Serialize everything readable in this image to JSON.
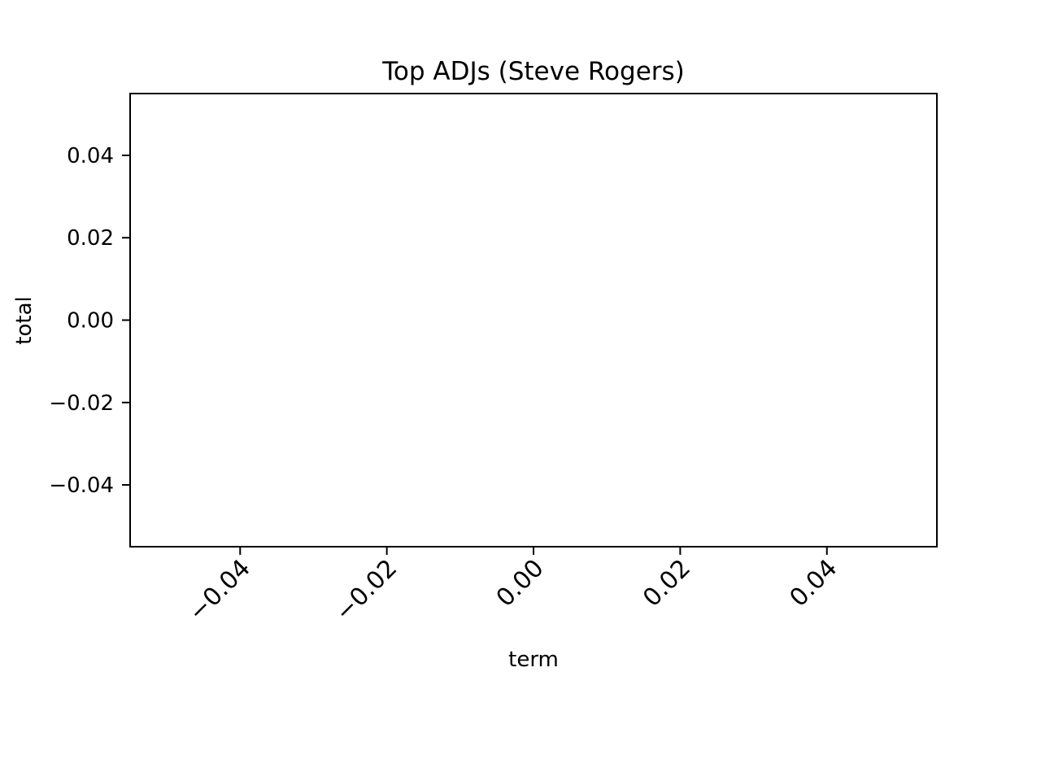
{
  "chart_data": {
    "type": "bar",
    "title": "Top ADJs (Steve Rogers)",
    "xlabel": "term",
    "ylabel": "total",
    "categories": [],
    "values": [],
    "xlim": [
      -0.055,
      0.055
    ],
    "ylim": [
      -0.055,
      0.055
    ],
    "x_ticks": [
      "−0.04",
      "−0.02",
      "0.00",
      "0.02",
      "0.04"
    ],
    "x_tick_values": [
      -0.04,
      -0.02,
      0.0,
      0.02,
      0.04
    ],
    "y_ticks": [
      "0.04",
      "0.02",
      "0.00",
      "−0.02",
      "−0.04"
    ],
    "y_tick_values": [
      0.04,
      0.02,
      0.0,
      -0.02,
      -0.04
    ],
    "x_tick_rotation": -45,
    "grid": false,
    "legend": "none"
  }
}
